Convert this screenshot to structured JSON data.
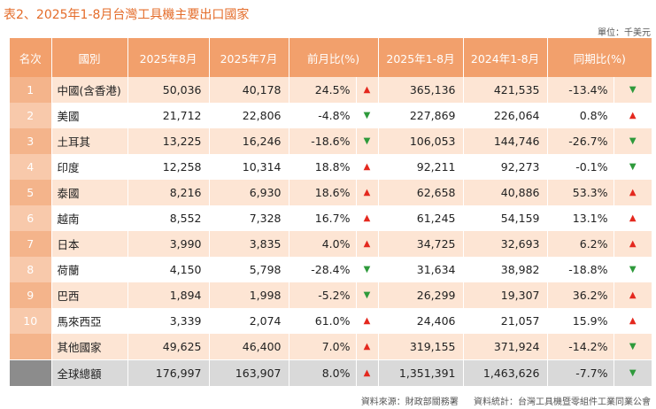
{
  "title": "表2、2025年1-8月台灣工具機主要出口國家",
  "unit": "單位：千美元",
  "headers": {
    "rank": "名次",
    "country": "國別",
    "aug2025": "2025年8月",
    "jul2025": "2025年7月",
    "mom": "前月比(%)",
    "ytd2025": "2025年1-8月",
    "ytd2024": "2024年1-8月",
    "yoy": "同期比(%)"
  },
  "rows": [
    {
      "rank": "1",
      "country": "中國(含香港)",
      "aug2025": "50,036",
      "jul2025": "40,178",
      "mom": "24.5%",
      "mom_dir": "up",
      "mom_arrow": "▲",
      "ytd2025": "365,136",
      "ytd2024": "421,535",
      "yoy": "-13.4%",
      "yoy_dir": "down",
      "yoy_arrow": "▼"
    },
    {
      "rank": "2",
      "country": "美國",
      "aug2025": "21,712",
      "jul2025": "22,806",
      "mom": "-4.8%",
      "mom_dir": "down",
      "mom_arrow": "▼",
      "ytd2025": "227,869",
      "ytd2024": "226,064",
      "yoy": "0.8%",
      "yoy_dir": "up",
      "yoy_arrow": "▲"
    },
    {
      "rank": "3",
      "country": "土耳其",
      "aug2025": "13,225",
      "jul2025": "16,246",
      "mom": "-18.6%",
      "mom_dir": "down",
      "mom_arrow": "▼",
      "ytd2025": "106,053",
      "ytd2024": "144,746",
      "yoy": "-26.7%",
      "yoy_dir": "down",
      "yoy_arrow": "▼"
    },
    {
      "rank": "4",
      "country": "印度",
      "aug2025": "12,258",
      "jul2025": "10,314",
      "mom": "18.8%",
      "mom_dir": "up",
      "mom_arrow": "▲",
      "ytd2025": "92,211",
      "ytd2024": "92,273",
      "yoy": "-0.1%",
      "yoy_dir": "down",
      "yoy_arrow": "▼"
    },
    {
      "rank": "5",
      "country": "泰國",
      "aug2025": "8,216",
      "jul2025": "6,930",
      "mom": "18.6%",
      "mom_dir": "up",
      "mom_arrow": "▲",
      "ytd2025": "62,658",
      "ytd2024": "40,886",
      "yoy": "53.3%",
      "yoy_dir": "up",
      "yoy_arrow": "▲"
    },
    {
      "rank": "6",
      "country": "越南",
      "aug2025": "8,552",
      "jul2025": "7,328",
      "mom": "16.7%",
      "mom_dir": "up",
      "mom_arrow": "▲",
      "ytd2025": "61,245",
      "ytd2024": "54,159",
      "yoy": "13.1%",
      "yoy_dir": "up",
      "yoy_arrow": "▲"
    },
    {
      "rank": "7",
      "country": "日本",
      "aug2025": "3,990",
      "jul2025": "3,835",
      "mom": "4.0%",
      "mom_dir": "up",
      "mom_arrow": "▲",
      "ytd2025": "34,725",
      "ytd2024": "32,693",
      "yoy": "6.2%",
      "yoy_dir": "up",
      "yoy_arrow": "▲"
    },
    {
      "rank": "8",
      "country": "荷蘭",
      "aug2025": "4,150",
      "jul2025": "5,798",
      "mom": "-28.4%",
      "mom_dir": "down",
      "mom_arrow": "▼",
      "ytd2025": "31,634",
      "ytd2024": "38,982",
      "yoy": "-18.8%",
      "yoy_dir": "down",
      "yoy_arrow": "▼"
    },
    {
      "rank": "9",
      "country": "巴西",
      "aug2025": "1,894",
      "jul2025": "1,998",
      "mom": "-5.2%",
      "mom_dir": "down",
      "mom_arrow": "▼",
      "ytd2025": "26,299",
      "ytd2024": "19,307",
      "yoy": "36.2%",
      "yoy_dir": "up",
      "yoy_arrow": "▲"
    },
    {
      "rank": "10",
      "country": "馬來西亞",
      "aug2025": "3,339",
      "jul2025": "2,074",
      "mom": "61.0%",
      "mom_dir": "up",
      "mom_arrow": "▲",
      "ytd2025": "24,406",
      "ytd2024": "21,057",
      "yoy": "15.9%",
      "yoy_dir": "up",
      "yoy_arrow": "▲"
    },
    {
      "rank": "",
      "country": "其他國家",
      "aug2025": "49,625",
      "jul2025": "46,400",
      "mom": "7.0%",
      "mom_dir": "up",
      "mom_arrow": "▲",
      "ytd2025": "319,155",
      "ytd2024": "371,924",
      "yoy": "-14.2%",
      "yoy_dir": "down",
      "yoy_arrow": "▼"
    }
  ],
  "total": {
    "country": "全球總額",
    "aug2025": "176,997",
    "jul2025": "163,907",
    "mom": "8.0%",
    "mom_dir": "up",
    "mom_arrow": "▲",
    "ytd2025": "1,351,391",
    "ytd2024": "1,463,626",
    "yoy": "-7.7%",
    "yoy_dir": "down",
    "yoy_arrow": "▼"
  },
  "source": {
    "data": "資料來源：財政部關務署",
    "stats": "資料統計：台灣工具機暨零組件工業同業公會"
  },
  "colors": {
    "header": "#f2a06c",
    "title": "#e46c2a",
    "up": "#e4281e",
    "down": "#2e9a3b",
    "band": "#fde5d4",
    "total": "#d9d9d9"
  }
}
